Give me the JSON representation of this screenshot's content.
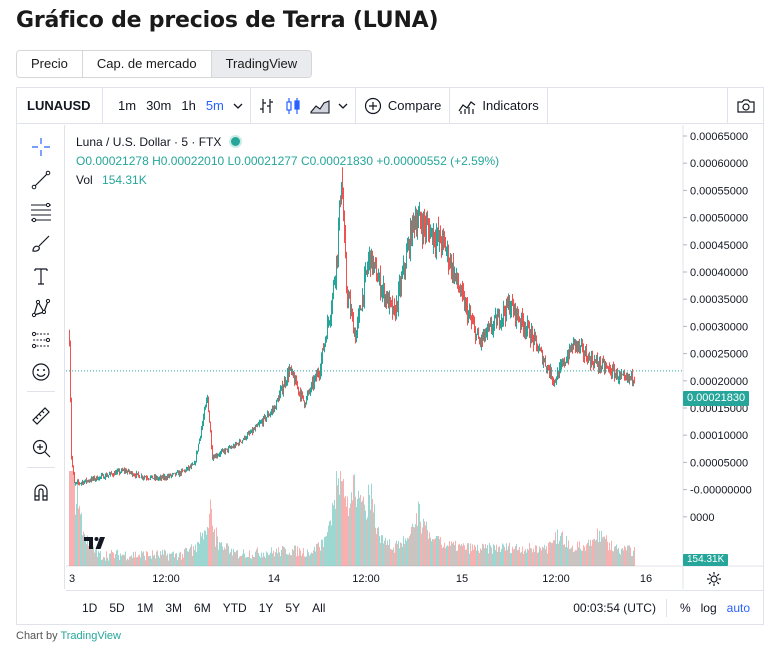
{
  "page": {
    "title": "Gráfico de precios de Terra (LUNA)"
  },
  "tabs": [
    {
      "label": "Precio",
      "active": false
    },
    {
      "label": "Cap. de mercado",
      "active": false
    },
    {
      "label": "TradingView",
      "active": true
    }
  ],
  "toolbar": {
    "symbol": "LUNAUSD",
    "intervals": [
      "1m",
      "30m",
      "1h",
      "5m"
    ],
    "active_interval": "5m",
    "compare_label": "Compare",
    "indicators_label": "Indicators"
  },
  "legend": {
    "title": "Luna / U.S. Dollar · 5 · FTX",
    "o_label": "O",
    "o_value": "0.00021278",
    "h_label": "H",
    "h_value": "0.00022010",
    "l_label": "L",
    "l_value": "0.00021277",
    "c_label": "C",
    "c_value": "0.00021830",
    "change": "+0.00000552 (+2.59%)",
    "vol_label": "Vol",
    "vol_value": "154.31K"
  },
  "price_axis": {
    "ticks": [
      "0.00065000",
      "0.00060000",
      "0.00055000",
      "0.00050000",
      "0.00045000",
      "0.00040000",
      "0.00035000",
      "0.00030000",
      "0.00025000",
      "0.00020000",
      "0.00015000",
      "0.00010000",
      "0.00005000",
      "-0.00000000",
      "0000"
    ],
    "last_price": "0.00021830",
    "volume_tag": "154.31K"
  },
  "time_axis": {
    "ticks": [
      "3",
      "12:00",
      "14",
      "12:00",
      "15",
      "12:00",
      "16"
    ]
  },
  "bottom": {
    "ranges": [
      "1D",
      "5D",
      "1M",
      "3M",
      "6M",
      "YTD",
      "1Y",
      "5Y",
      "All"
    ],
    "clock": "00:03:54 (UTC)",
    "percent_label": "%",
    "log_label": "log",
    "auto_label": "auto"
  },
  "credit": {
    "prefix": "Chart by ",
    "brand": "TradingView"
  },
  "colors": {
    "up": "#26a69a",
    "down": "#ef5350",
    "accent": "#2962ff"
  },
  "chart_data": {
    "type": "candlestick",
    "interval": "5m",
    "y_unit": "USD",
    "ylim": [
      -2e-05,
      0.00065
    ],
    "price_path": [
      [
        0,
        0.00028
      ],
      [
        2,
        6e-05
      ],
      [
        5,
        1e-05
      ],
      [
        15,
        1.5e-05
      ],
      [
        35,
        2.5e-05
      ],
      [
        55,
        3.5e-05
      ],
      [
        70,
        2.5e-05
      ],
      [
        90,
        2e-05
      ],
      [
        110,
        3e-05
      ],
      [
        125,
        4.5e-05
      ],
      [
        138,
        0.00017
      ],
      [
        143,
        6e-05
      ],
      [
        165,
        8e-05
      ],
      [
        185,
        0.00011
      ],
      [
        205,
        0.00015
      ],
      [
        220,
        0.00022
      ],
      [
        235,
        0.00016
      ],
      [
        250,
        0.00022
      ],
      [
        262,
        0.00034
      ],
      [
        268,
        0.00044
      ],
      [
        272,
        0.00058
      ],
      [
        277,
        0.00037
      ],
      [
        286,
        0.00028
      ],
      [
        300,
        0.00043
      ],
      [
        310,
        0.00038
      ],
      [
        325,
        0.00032
      ],
      [
        345,
        0.0005
      ],
      [
        358,
        0.00048
      ],
      [
        375,
        0.00045
      ],
      [
        395,
        0.00034
      ],
      [
        410,
        0.00027
      ],
      [
        440,
        0.00034
      ],
      [
        460,
        0.00029
      ],
      [
        485,
        0.0002
      ],
      [
        505,
        0.00027
      ],
      [
        520,
        0.00024
      ],
      [
        540,
        0.00022
      ],
      [
        556,
        0.0002
      ],
      [
        565,
        0.00021
      ]
    ],
    "volume_spikes": [
      [
        0,
        0.55
      ],
      [
        3,
        0.85
      ],
      [
        140,
        0.55
      ],
      [
        270,
        0.85
      ],
      [
        285,
        0.75
      ],
      [
        300,
        0.6
      ],
      [
        350,
        0.4
      ],
      [
        490,
        0.25
      ],
      [
        530,
        0.25
      ]
    ],
    "volume_scale_max": 154310
  }
}
